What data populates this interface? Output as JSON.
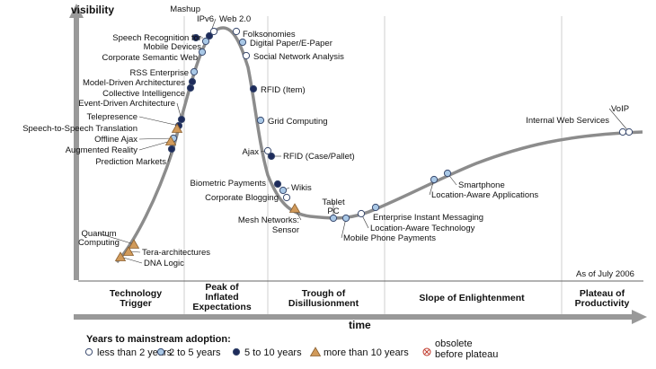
{
  "axes": {
    "y_label": "visibility",
    "x_label": "time"
  },
  "as_of": "As of July 2006",
  "phases": [
    {
      "id": "trigger",
      "lines": [
        "Technology",
        "Trigger"
      ]
    },
    {
      "id": "peak",
      "lines": [
        "Peak of",
        "Inflated",
        "Expectations"
      ]
    },
    {
      "id": "trough",
      "lines": [
        "Trough of",
        "Disillusionment"
      ]
    },
    {
      "id": "slope",
      "lines": [
        "Slope of Enlightenment"
      ]
    },
    {
      "id": "plateau",
      "lines": [
        "Plateau of",
        "Productivity"
      ]
    }
  ],
  "technologies": [
    {
      "name": "Mashup",
      "category": "light"
    },
    {
      "name": "IPv6",
      "category": "dark"
    },
    {
      "name": "Web 2.0",
      "category": "white"
    },
    {
      "name": "Folksonomies",
      "category": "white"
    },
    {
      "name": "Speech Recognition for\nMobile Devices",
      "category": "dark"
    },
    {
      "name": "Digital Paper/E-Paper",
      "category": "light"
    },
    {
      "name": "Corporate Semantic Web",
      "category": "light"
    },
    {
      "name": "Social Network Analysis",
      "category": "white"
    },
    {
      "name": "RSS Enterprise",
      "category": "light"
    },
    {
      "name": "Model-Driven Architectures",
      "category": "dark"
    },
    {
      "name": "Collective Intelligence",
      "category": "dark"
    },
    {
      "name": "RFID (Item)",
      "category": "dark"
    },
    {
      "name": "Event-Driven Architecture",
      "category": "dark"
    },
    {
      "name": "Grid Computing",
      "category": "light"
    },
    {
      "name": "Telepresence",
      "category": "dark"
    },
    {
      "name": "Speech-to-Speech Translation",
      "category": "tri"
    },
    {
      "name": "Offline Ajax",
      "category": "light"
    },
    {
      "name": "Augmented Reality",
      "category": "tri"
    },
    {
      "name": "Prediction Markets",
      "category": "dark"
    },
    {
      "name": "Ajax",
      "category": "white"
    },
    {
      "name": "RFID (Case/Pallet)",
      "category": "dark"
    },
    {
      "name": "Biometric Payments",
      "category": "dark"
    },
    {
      "name": "Wikis",
      "category": "light"
    },
    {
      "name": "Corporate Blogging",
      "category": "white"
    },
    {
      "name": "Mesh Networks:\nSensor",
      "category": "tri"
    },
    {
      "name": "Tablet\nPC",
      "category": "light"
    },
    {
      "name": "Mobile Phone Payments",
      "category": "light"
    },
    {
      "name": "Enterprise Instant Messaging",
      "category": "light"
    },
    {
      "name": "Location-Aware Technology",
      "category": "white"
    },
    {
      "name": "Smartphone",
      "category": "light"
    },
    {
      "name": "Location-Aware Applications",
      "category": "light"
    },
    {
      "name": "VoIP",
      "category": "white"
    },
    {
      "name": "Internal Web Services",
      "category": "white"
    },
    {
      "name": "Quantum\nComputing",
      "category": "tri"
    },
    {
      "name": "Tera-architectures",
      "category": "tri"
    },
    {
      "name": "DNA Logic",
      "category": "tri"
    }
  ],
  "legend": {
    "title": "Years to mainstream adoption:",
    "items": [
      {
        "category": "white",
        "label": "less than 2 years"
      },
      {
        "category": "light",
        "label": "2 to 5 years"
      },
      {
        "category": "dark",
        "label": "5 to 10 years"
      },
      {
        "category": "tri",
        "label": "more than 10 years"
      },
      {
        "category": "obsolete",
        "label": "obsolete\nbefore plateau"
      }
    ]
  },
  "colors": {
    "curve": "#8c8c8c",
    "white": "#ffffff",
    "light": "#a9c8e6",
    "dark": "#1d2b5b",
    "triangle": "#d19a5a",
    "stroke": "#3a4a6e",
    "gridline": "#cfcfcf",
    "obsolete": "#c0392b"
  }
}
